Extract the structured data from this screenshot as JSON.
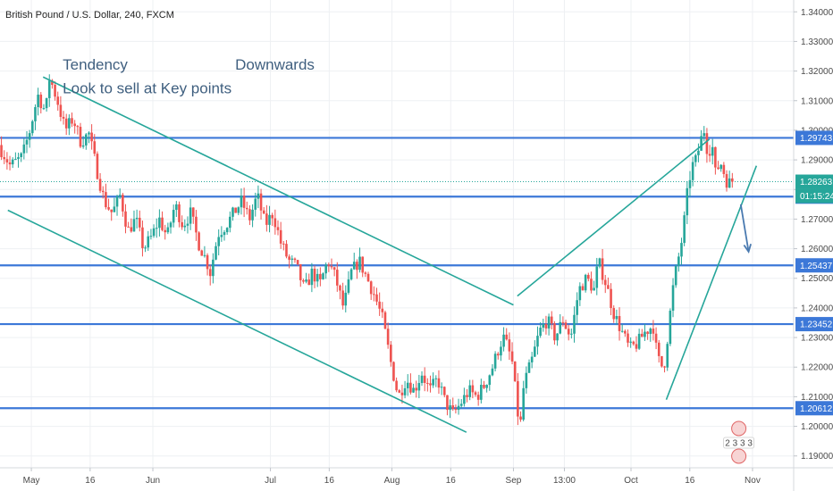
{
  "chart_data": {
    "type": "candlestick",
    "title": "British Pound / U.S. Dollar, 240, FXCM",
    "xlabel": "",
    "ylabel": "",
    "ylim": [
      1.186,
      1.344
    ],
    "grid": true,
    "colors": {
      "up": "#26a69a",
      "down": "#ef5350",
      "level_line": "#3c78d8",
      "trend_line": "#26a69a",
      "arrow": "#4a7ab0",
      "price_tag": "#26a69a",
      "level_tag": "#3c78d8",
      "countdown_tag": "#26a69a",
      "grid": "#eef0f3",
      "axis_text": "#4a4a4a",
      "annotation": "#3f5f7f",
      "current_line": "#26a69a"
    },
    "y_ticks": [
      "1.34000",
      "1.33000",
      "1.32000",
      "1.31000",
      "1.30000",
      "1.29000",
      "1.28000",
      "1.27000",
      "1.26000",
      "1.25000",
      "1.24000",
      "1.23000",
      "1.22000",
      "1.21000",
      "1.20000",
      "1.19000"
    ],
    "x_ticks": [
      {
        "label": "May",
        "day": 0
      },
      {
        "label": "16",
        "day": 15
      },
      {
        "label": "Jun",
        "day": 31
      },
      {
        "label": "Jul",
        "day": 61
      },
      {
        "label": "16",
        "day": 76
      },
      {
        "label": "Aug",
        "day": 92
      },
      {
        "label": "16",
        "day": 107
      },
      {
        "label": "Sep",
        "day": 123
      },
      {
        "label": "13:00",
        "day": 136
      },
      {
        "label": "Oct",
        "day": 153
      },
      {
        "label": "16",
        "day": 168
      },
      {
        "label": "Nov",
        "day": 184
      }
    ],
    "x_range_days": [
      -8,
      194.5
    ],
    "price_path": [
      [
        -8,
        1.295
      ],
      [
        -5,
        1.288
      ],
      [
        -2,
        1.291
      ],
      [
        0,
        1.3
      ],
      [
        2,
        1.312
      ],
      [
        4,
        1.306
      ],
      [
        5,
        1.318
      ],
      [
        7,
        1.31
      ],
      [
        9,
        1.3
      ],
      [
        11,
        1.304
      ],
      [
        13,
        1.296
      ],
      [
        15,
        1.299
      ],
      [
        17,
        1.287
      ],
      [
        19,
        1.276
      ],
      [
        21,
        1.272
      ],
      [
        23,
        1.278
      ],
      [
        25,
        1.266
      ],
      [
        27,
        1.27
      ],
      [
        29,
        1.26
      ],
      [
        31,
        1.264
      ],
      [
        33,
        1.27
      ],
      [
        35,
        1.264
      ],
      [
        37,
        1.275
      ],
      [
        39,
        1.268
      ],
      [
        41,
        1.272
      ],
      [
        43,
        1.262
      ],
      [
        45,
        1.256
      ],
      [
        46,
        1.252
      ],
      [
        48,
        1.265
      ],
      [
        50,
        1.268
      ],
      [
        52,
        1.272
      ],
      [
        54,
        1.276
      ],
      [
        56,
        1.27
      ],
      [
        58,
        1.278
      ],
      [
        60,
        1.268
      ],
      [
        62,
        1.272
      ],
      [
        64,
        1.262
      ],
      [
        66,
        1.256
      ],
      [
        68,
        1.254
      ],
      [
        70,
        1.246
      ],
      [
        72,
        1.252
      ],
      [
        74,
        1.248
      ],
      [
        76,
        1.256
      ],
      [
        78,
        1.25
      ],
      [
        80,
        1.24
      ],
      [
        82,
        1.252
      ],
      [
        84,
        1.256
      ],
      [
        86,
        1.25
      ],
      [
        88,
        1.244
      ],
      [
        90,
        1.236
      ],
      [
        92,
        1.222
      ],
      [
        94,
        1.21
      ],
      [
        96,
        1.216
      ],
      [
        98,
        1.212
      ],
      [
        100,
        1.218
      ],
      [
        102,
        1.212
      ],
      [
        104,
        1.216
      ],
      [
        106,
        1.208
      ],
      [
        108,
        1.204
      ],
      [
        110,
        1.208
      ],
      [
        112,
        1.212
      ],
      [
        114,
        1.21
      ],
      [
        116,
        1.214
      ],
      [
        118,
        1.22
      ],
      [
        120,
        1.228
      ],
      [
        121,
        1.23
      ],
      [
        122,
        1.226
      ],
      [
        123,
        1.222
      ],
      [
        124,
        1.21
      ],
      [
        125,
        1.198
      ],
      [
        126,
        1.214
      ],
      [
        128,
        1.222
      ],
      [
        130,
        1.232
      ],
      [
        132,
        1.236
      ],
      [
        134,
        1.23
      ],
      [
        136,
        1.236
      ],
      [
        138,
        1.23
      ],
      [
        140,
        1.246
      ],
      [
        142,
        1.25
      ],
      [
        144,
        1.246
      ],
      [
        145,
        1.256
      ],
      [
        147,
        1.248
      ],
      [
        149,
        1.238
      ],
      [
        151,
        1.232
      ],
      [
        153,
        1.226
      ],
      [
        155,
        1.228
      ],
      [
        157,
        1.232
      ],
      [
        159,
        1.234
      ],
      [
        160,
        1.224
      ],
      [
        161,
        1.22
      ],
      [
        162,
        1.222
      ],
      [
        163,
        1.234
      ],
      [
        164,
        1.246
      ],
      [
        165,
        1.254
      ],
      [
        166,
        1.26
      ],
      [
        167,
        1.27
      ],
      [
        168,
        1.282
      ],
      [
        169,
        1.288
      ],
      [
        170,
        1.29
      ],
      [
        171,
        1.296
      ],
      [
        172,
        1.3
      ],
      [
        173,
        1.292
      ],
      [
        174,
        1.296
      ],
      [
        175,
        1.284
      ],
      [
        176,
        1.29
      ],
      [
        177,
        1.286
      ],
      [
        178,
        1.282
      ],
      [
        179,
        1.2826
      ]
    ],
    "horizontal_levels": [
      1.29743,
      1.27758,
      1.25437,
      1.23452,
      1.20612
    ],
    "current_price": 1.28263,
    "countdown": "01:15:24",
    "trend_lines": [
      {
        "name": "upper-descending",
        "from": [
          3,
          1.318
        ],
        "to": [
          123,
          1.241
        ]
      },
      {
        "name": "lower-descending",
        "from": [
          -6,
          1.273
        ],
        "to": [
          111,
          1.198
        ]
      },
      {
        "name": "rising-wedge-top",
        "from": [
          124,
          1.244
        ],
        "to": [
          173,
          1.297
        ]
      },
      {
        "name": "rising-support",
        "from": [
          162,
          1.209
        ],
        "to": [
          185,
          1.288
        ]
      }
    ],
    "arrow": {
      "from": [
        181,
        1.275
      ],
      "to": [
        183,
        1.259
      ]
    },
    "annotations": [
      {
        "text": "Tendency",
        "day": 8,
        "price": 1.3205
      },
      {
        "text": "Downwards",
        "day": 52,
        "price": 1.3205
      },
      {
        "text": "Look to sell at Key points",
        "day": 8,
        "price": 1.3125
      }
    ],
    "event_badge": "2 3 3 3"
  }
}
